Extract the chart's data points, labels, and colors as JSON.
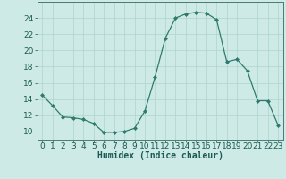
{
  "x": [
    0,
    1,
    2,
    3,
    4,
    5,
    6,
    7,
    8,
    9,
    10,
    11,
    12,
    13,
    14,
    15,
    16,
    17,
    18,
    19,
    20,
    21,
    22,
    23
  ],
  "y": [
    14.5,
    13.2,
    11.8,
    11.7,
    11.5,
    11.0,
    9.9,
    9.9,
    10.0,
    10.4,
    12.5,
    16.7,
    21.5,
    24.0,
    24.5,
    24.7,
    24.6,
    23.8,
    18.6,
    18.9,
    17.5,
    13.8,
    13.8,
    10.8
  ],
  "xlabel": "Humidex (Indice chaleur)",
  "ylim": [
    9,
    26
  ],
  "xlim": [
    -0.5,
    23.5
  ],
  "yticks": [
    10,
    12,
    14,
    16,
    18,
    20,
    22,
    24
  ],
  "xticks": [
    0,
    1,
    2,
    3,
    4,
    5,
    6,
    7,
    8,
    9,
    10,
    11,
    12,
    13,
    14,
    15,
    16,
    17,
    18,
    19,
    20,
    21,
    22,
    23
  ],
  "line_color": "#2e7b6e",
  "marker_color": "#2e7b6e",
  "bg_color": "#ceeae6",
  "grid_color": "#aed4cf",
  "axis_color": "#4a7a72",
  "label_color": "#1a5a52",
  "font_size_label": 7,
  "font_size_tick": 6.5
}
